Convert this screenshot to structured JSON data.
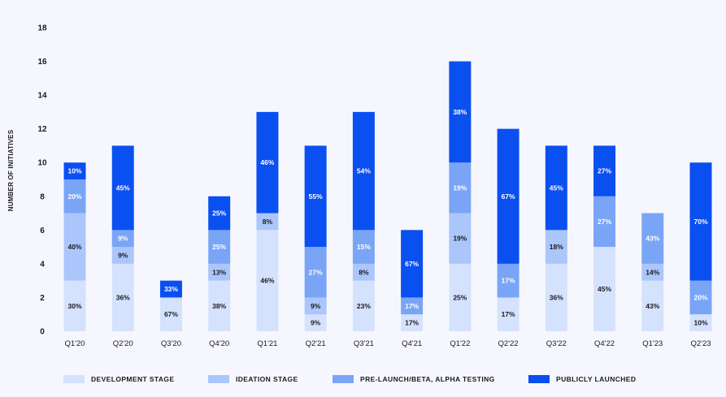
{
  "chart_data": {
    "type": "stacked-bar",
    "title": "",
    "xlabel": "",
    "ylabel": "NUMBER OF INITIATIVES",
    "ylim": [
      0,
      18
    ],
    "yticks": [
      "0",
      "2",
      "4",
      "6",
      "8",
      "10",
      "12",
      "14",
      "16",
      "18"
    ],
    "grid": false,
    "legend_position": "bottom",
    "categories": [
      "Q1'20",
      "Q2'20",
      "Q3'20",
      "Q4'20",
      "Q1'21",
      "Q2'21",
      "Q3'21",
      "Q4'21",
      "Q1'22",
      "Q2'22",
      "Q3'22",
      "Q4'22",
      "Q1'23",
      "Q2'23"
    ],
    "series": [
      {
        "name": "DEVELOPMENT STAGE",
        "color": "#d5e2fd",
        "label_color": "#1b1b1b",
        "values": [
          3,
          4,
          2,
          3,
          6,
          1,
          3,
          1,
          4,
          2,
          4,
          5,
          3,
          1
        ],
        "labels": [
          "30%",
          "36%",
          "67%",
          "38%",
          "46%",
          "9%",
          "23%",
          "17%",
          "25%",
          "17%",
          "36%",
          "45%",
          "43%",
          "10%"
        ]
      },
      {
        "name": "IDEATION STAGE",
        "color": "#aac6fb",
        "label_color": "#1b1b1b",
        "values": [
          4,
          1,
          0,
          1,
          1,
          1,
          1,
          0,
          3,
          0,
          2,
          0,
          1,
          0
        ],
        "labels": [
          "40%",
          "9%",
          "",
          "13%",
          "8%",
          "9%",
          "8%",
          "",
          "19%",
          "",
          "18%",
          "",
          "14%",
          ""
        ]
      },
      {
        "name": "PRE-LAUNCH/BETA, ALPHA TESTING",
        "color": "#7aa5f7",
        "label_color": "#ffffff",
        "values": [
          2,
          1,
          0,
          2,
          0,
          3,
          2,
          1,
          3,
          2,
          0,
          3,
          3,
          2
        ],
        "labels": [
          "20%",
          "9%",
          "",
          "25%",
          "",
          "27%",
          "15%",
          "17%",
          "19%",
          "17%",
          "",
          "27%",
          "43%",
          "20%"
        ]
      },
      {
        "name": "PUBLICLY LAUNCHED",
        "color": "#0a4ff0",
        "label_color": "#ffffff",
        "values": [
          1,
          5,
          1,
          2,
          6,
          6,
          7,
          4,
          6,
          8,
          5,
          3,
          0,
          7
        ],
        "labels": [
          "10%",
          "45%",
          "33%",
          "25%",
          "46%",
          "55%",
          "54%",
          "67%",
          "38%",
          "67%",
          "45%",
          "27%",
          "",
          "70%"
        ]
      }
    ]
  }
}
